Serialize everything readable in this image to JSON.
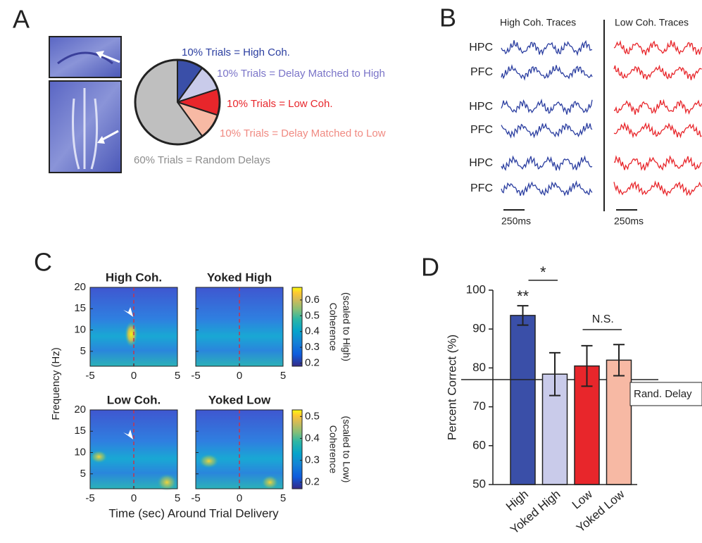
{
  "panel_labels": [
    "A",
    "B",
    "C",
    "D"
  ],
  "chart_data": [
    {
      "type": "pie",
      "labels": [
        "10% Trials = High Coh.",
        "10% Trials = Delay Matched to High",
        "10% Trials = Low Coh.",
        "10% Trials = Delay Matched to Low",
        "60% Trials = Random Delays"
      ],
      "values": [
        10,
        10,
        10,
        10,
        60
      ],
      "colors": [
        "#3a4fa8",
        "#c9cbea",
        "#e8262b",
        "#f7b9a4",
        "#bfbfbf"
      ],
      "label_colors": [
        "#2b3ea0",
        "#7a74c8",
        "#e8262b",
        "#f08a82",
        "#8c8c8c"
      ]
    },
    {
      "type": "traces",
      "column_titles": [
        "High Coh. Traces",
        "Low Coh. Traces"
      ],
      "row_labels": [
        "HPC",
        "PFC",
        "HPC",
        "PFC",
        "HPC",
        "PFC"
      ],
      "colors": [
        "#2b3ea0",
        "#e8262b"
      ],
      "scale_bar": "250ms"
    },
    {
      "type": "heatmap",
      "titles": [
        "High Coh.",
        "Yoked High",
        "Low Coh.",
        "Yoked Low"
      ],
      "ylabel": "Frequency (Hz)",
      "xlabel": "Time (sec) Around Trial Delivery",
      "xlim": [
        -5,
        5
      ],
      "xticks": [
        -5,
        0,
        5
      ],
      "ylim": [
        1.5,
        20
      ],
      "yticks": [
        5,
        10,
        15,
        20
      ],
      "colorbars": [
        {
          "label": [
            "Coherence",
            "(scaled to High)"
          ],
          "clim": [
            0.18,
            0.68
          ],
          "ticks": [
            0.2,
            0.3,
            0.4,
            0.5,
            0.6
          ]
        },
        {
          "label": [
            "Coherence",
            "(scaled to Low)"
          ],
          "clim": [
            0.17,
            0.53
          ],
          "ticks": [
            0.2,
            0.3,
            0.4,
            0.5
          ]
        }
      ]
    },
    {
      "type": "bar",
      "categories": [
        "High",
        "Yoked High",
        "Low",
        "Yoked Low"
      ],
      "values": [
        93.5,
        78.4,
        80.5,
        82
      ],
      "errors": [
        2.5,
        5.5,
        5.2,
        4
      ],
      "colors": [
        "#3a4fa8",
        "#c9cbea",
        "#e8262b",
        "#f7b9a4"
      ],
      "ylabel": "Percent Correct (%)",
      "ylim": [
        50,
        100
      ],
      "yticks": [
        50,
        60,
        70,
        80,
        90,
        100
      ],
      "reference": {
        "value": 77,
        "label": "Rand. Delay"
      },
      "annotations": [
        "**",
        "*",
        "N.S."
      ]
    }
  ]
}
